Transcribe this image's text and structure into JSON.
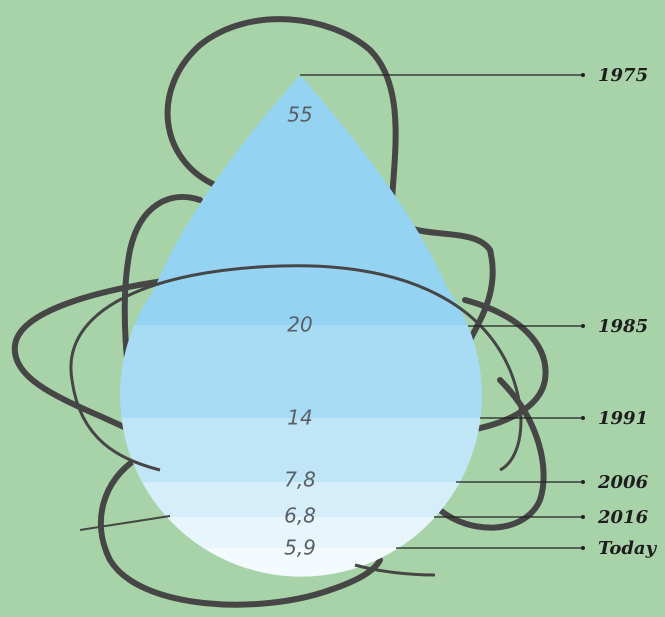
{
  "levels": [
    {
      "value": "55",
      "year": "1975"
    },
    {
      "value": "20",
      "year": "1985"
    },
    {
      "value": "14",
      "year": "1991"
    },
    {
      "value": "7,8",
      "year": "2006"
    },
    {
      "value": "6,8",
      "year": "2016"
    },
    {
      "value": "5,9",
      "year": "Today"
    }
  ]
}
